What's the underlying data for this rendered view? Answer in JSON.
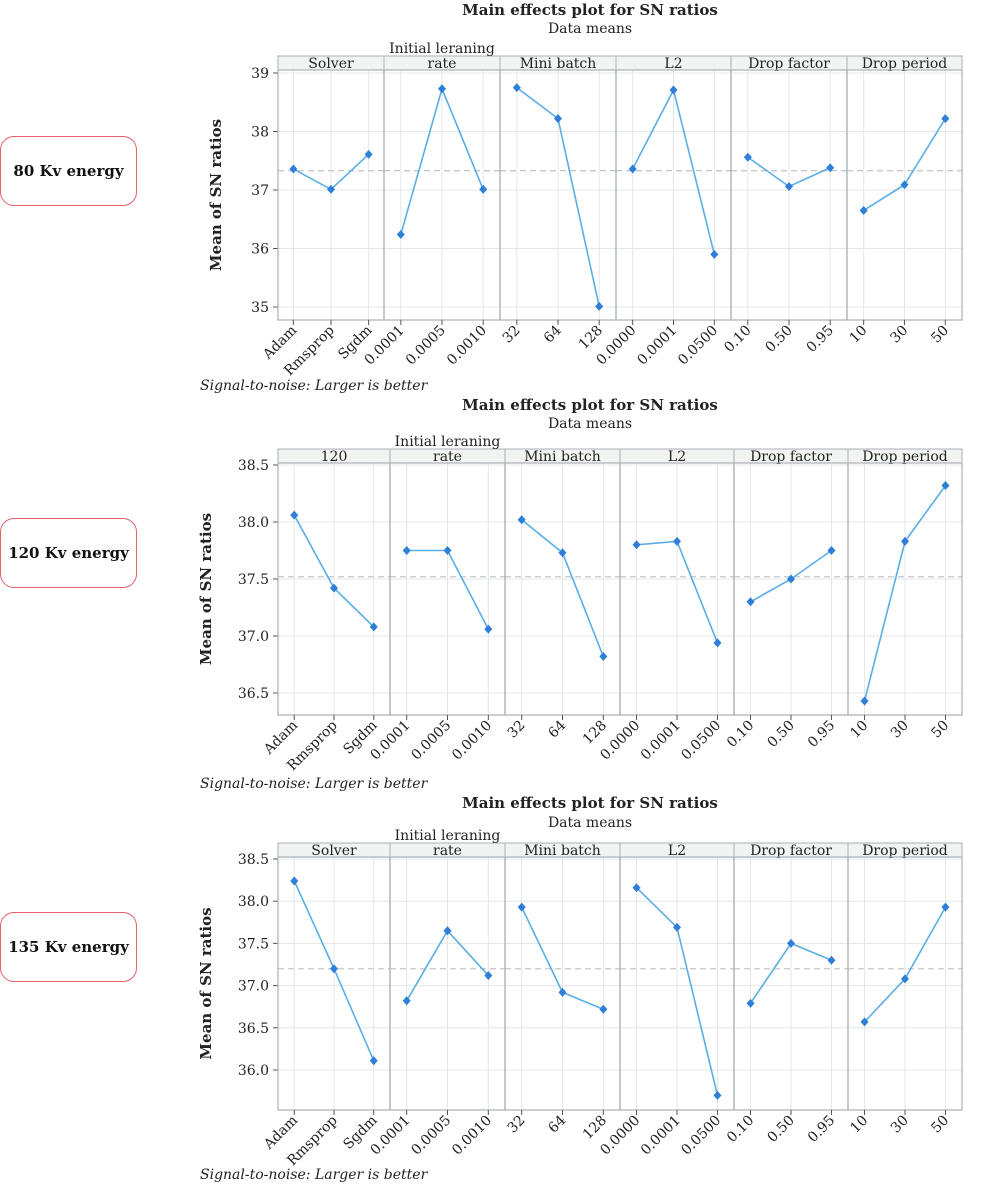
{
  "labels": {
    "energy_boxes": [
      "80 Kv energy",
      "120 Kv energy",
      "135 Kv energy"
    ]
  },
  "colors": {
    "line": "#5aaee6",
    "marker": "#2f7fd8",
    "panel_border": "#a9b1b4",
    "header_bg": "#f2f4f4",
    "grid": "#e3e7e8",
    "mean_line": "#c4c8ca",
    "box_border": "#e0626b"
  },
  "chart_data": [
    {
      "type": "line",
      "title": "Main effects plot for SN ratios",
      "subtitle": "Data means",
      "ylabel": "Mean of SN ratios",
      "footnote": "Signal-to-noise: Larger is better",
      "ylim": [
        34.8,
        39.1
      ],
      "yticks": [
        "35",
        "36",
        "37",
        "38",
        "39"
      ],
      "grand_mean": 37.33,
      "factors": [
        {
          "name": "Solver",
          "levels": [
            "Adam",
            "Rmsprop",
            "Sgdm"
          ],
          "values": [
            37.36,
            37.01,
            37.61
          ]
        },
        {
          "name": "Initial leraning rate",
          "levels": [
            "0.0001",
            "0.0005",
            "0.0010"
          ],
          "values": [
            36.24,
            38.73,
            37.01
          ]
        },
        {
          "name": "Mini batch",
          "levels": [
            "32",
            "64",
            "128"
          ],
          "values": [
            38.75,
            38.22,
            35.01
          ]
        },
        {
          "name": "L2",
          "levels": [
            "0.0000",
            "0.0001",
            "0.0500"
          ],
          "values": [
            37.36,
            38.71,
            35.9
          ]
        },
        {
          "name": "Drop factor",
          "levels": [
            "0.10",
            "0.50",
            "0.95"
          ],
          "values": [
            37.56,
            37.06,
            37.38
          ]
        },
        {
          "name": "Drop period",
          "levels": [
            "10",
            "30",
            "50"
          ],
          "values": [
            36.65,
            37.09,
            38.22
          ]
        }
      ]
    },
    {
      "type": "line",
      "title": "Main effects plot for SN ratios",
      "subtitle": "Data means",
      "ylabel": "Mean of SN ratios",
      "footnote": "Signal-to-noise: Larger is better",
      "ylim": [
        36.35,
        38.6
      ],
      "yticks": [
        "36.5",
        "37.0",
        "37.5",
        "38.0",
        "38.5"
      ],
      "grand_mean": 37.52,
      "factors": [
        {
          "name": "120",
          "levels": [
            "Adam",
            "Rmsprop",
            "Sgdm"
          ],
          "values": [
            38.06,
            37.42,
            37.08
          ]
        },
        {
          "name": "Initial leraning rate",
          "levels": [
            "0.0001",
            "0.0005",
            "0.0010"
          ],
          "values": [
            37.75,
            37.75,
            37.06
          ]
        },
        {
          "name": "Mini batch",
          "levels": [
            "32",
            "64",
            "128"
          ],
          "values": [
            38.02,
            37.73,
            36.82
          ]
        },
        {
          "name": "L2",
          "levels": [
            "0.0000",
            "0.0001",
            "0.0500"
          ],
          "values": [
            37.8,
            37.83,
            36.94
          ]
        },
        {
          "name": "Drop factor",
          "levels": [
            "0.10",
            "0.50",
            "0.95"
          ],
          "values": [
            37.3,
            37.5,
            37.75
          ]
        },
        {
          "name": "Drop period",
          "levels": [
            "10",
            "30",
            "50"
          ],
          "values": [
            36.43,
            37.83,
            38.32
          ]
        }
      ]
    },
    {
      "type": "line",
      "title": "Main effects plot for SN ratios",
      "subtitle": "Data means",
      "ylabel": "Mean of SN ratios",
      "footnote": "Signal-to-noise: Larger is better",
      "ylim": [
        35.6,
        38.6
      ],
      "yticks": [
        "36.0",
        "36.5",
        "37.0",
        "37.5",
        "38.0",
        "38.5"
      ],
      "grand_mean": 37.2,
      "factors": [
        {
          "name": "Solver",
          "levels": [
            "Adam",
            "Rmsprop",
            "Sgdm"
          ],
          "values": [
            38.24,
            37.2,
            36.11
          ]
        },
        {
          "name": "Initial leraning rate",
          "levels": [
            "0.0001",
            "0.0005",
            "0.0010"
          ],
          "values": [
            36.82,
            37.65,
            37.12
          ]
        },
        {
          "name": "Mini batch",
          "levels": [
            "32",
            "64",
            "128"
          ],
          "values": [
            37.93,
            36.92,
            36.72
          ]
        },
        {
          "name": "L2",
          "levels": [
            "0.0000",
            "0.0001",
            "0.0500"
          ],
          "values": [
            38.16,
            37.69,
            35.7
          ]
        },
        {
          "name": "Drop factor",
          "levels": [
            "0.10",
            "0.50",
            "0.95"
          ],
          "values": [
            36.79,
            37.5,
            37.3
          ]
        },
        {
          "name": "Drop period",
          "levels": [
            "10",
            "30",
            "50"
          ],
          "values": [
            36.57,
            37.08,
            37.93
          ]
        }
      ]
    }
  ]
}
